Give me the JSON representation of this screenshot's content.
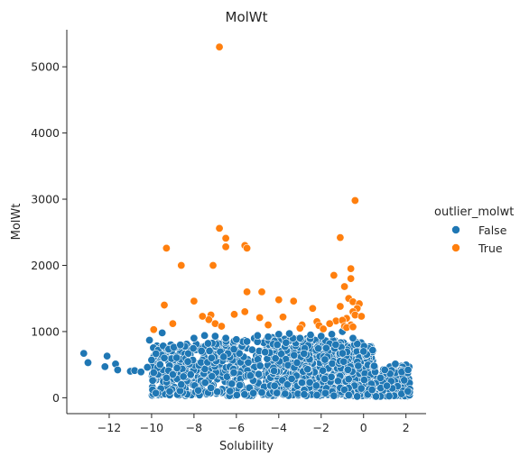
{
  "chart_data": {
    "type": "scatter",
    "title": "MolWt",
    "xlabel": "Solubility",
    "ylabel": "MolWt",
    "xlim": [
      -14,
      2.95
    ],
    "ylim": [
      -240,
      5560
    ],
    "xticks": [
      -12,
      -10,
      -8,
      -6,
      -4,
      -2,
      0,
      2
    ],
    "xtick_labels": [
      "−12",
      "−10",
      "−8",
      "−6",
      "−4",
      "−2",
      "0",
      "2"
    ],
    "yticks": [
      0,
      1000,
      2000,
      3000,
      4000,
      5000
    ],
    "ytick_labels": [
      "0",
      "1000",
      "2000",
      "3000",
      "4000",
      "5000"
    ],
    "grid": false,
    "legend": {
      "title": "outlier_molwt",
      "placement": "right",
      "entries": [
        {
          "label": "False",
          "color": "#1f77b4"
        },
        {
          "label": "True",
          "color": "#ff7f0e"
        }
      ]
    },
    "series": [
      {
        "name": "False",
        "color": "#1f77b4",
        "note_dense_region": true,
        "x": [
          -13.2,
          -13.0,
          -12.1,
          -12.2,
          -11.7,
          -11.6,
          -11.0,
          -10.8,
          -10.5,
          -10.2,
          -10.1,
          -9.95,
          -9.8,
          -10.0,
          -9.9,
          -9.6,
          -9.4,
          -9.2,
          -9.0,
          -9.5,
          -8.8,
          -8.5,
          -8.0,
          -7.5,
          -7.0,
          -6.5,
          -6.0,
          -5.5,
          -5.0,
          -4.5,
          -4.0,
          -3.5,
          -3.0,
          -2.5,
          -2.0,
          -1.5,
          -1.0,
          -0.5,
          0.0,
          0.5,
          0.8,
          1.0,
          1.3,
          1.5,
          1.8,
          2.1,
          -4.2,
          -1.1,
          -0.9,
          -7.8,
          -6.9,
          -5.2,
          -3.1,
          -2.2,
          -1.4,
          -0.3,
          0.2,
          -9.3,
          -8.6,
          -7.2,
          -6.3,
          -4.8,
          -3.7,
          -2.8,
          -1.8,
          -0.7,
          0.4,
          1.1
        ],
        "y": [
          670,
          530,
          630,
          470,
          510,
          420,
          400,
          410,
          390,
          460,
          870,
          260,
          70,
          570,
          380,
          500,
          600,
          410,
          350,
          980,
          450,
          320,
          900,
          940,
          930,
          900,
          880,
          850,
          940,
          920,
          960,
          970,
          900,
          950,
          930,
          960,
          1000,
          900,
          700,
          480,
          300,
          420,
          250,
          510,
          390,
          420,
          180,
          150,
          120,
          110,
          90,
          70,
          60,
          40,
          30,
          20,
          50,
          300,
          200,
          150,
          100,
          80,
          60,
          50,
          70,
          40,
          120,
          180
        ]
      },
      {
        "name": "True",
        "color": "#ff7f0e",
        "x": [
          -6.8,
          -0.4,
          -6.8,
          -6.5,
          -6.5,
          -1.1,
          -5.6,
          -5.5,
          -8.6,
          -7.1,
          -9.3,
          -0.6,
          -1.4,
          -0.6,
          -0.9,
          -5.5,
          -4.8,
          -4.0,
          -3.3,
          -1.1,
          -0.7,
          -0.5,
          -0.2,
          -0.3,
          -7.2,
          -8.0,
          -9.4,
          -9.0,
          -5.6,
          -4.9,
          -2.4,
          -6.1,
          -7.3,
          -7.6,
          -1.3,
          -0.8,
          -0.5,
          -0.4,
          -3.8,
          -2.9,
          -2.2,
          -1.6,
          -1.0,
          -0.9,
          -0.6,
          -0.1,
          -7.0,
          -6.7,
          -9.9,
          -4.5,
          -3.0,
          -2.1,
          -1.9,
          -0.8,
          -0.5
        ],
        "y": [
          5300,
          2980,
          2560,
          2410,
          2280,
          2420,
          2300,
          2260,
          2000,
          2000,
          2260,
          1950,
          1850,
          1800,
          1680,
          1600,
          1600,
          1480,
          1460,
          1380,
          1500,
          1450,
          1420,
          1350,
          1250,
          1460,
          1400,
          1120,
          1300,
          1210,
          1350,
          1260,
          1180,
          1230,
          1160,
          1200,
          1300,
          1250,
          1220,
          1100,
          1150,
          1120,
          1170,
          1080,
          1100,
          1230,
          1120,
          1080,
          1030,
          1100,
          1050,
          1090,
          1040,
          1060,
          1070
        ]
      }
    ]
  }
}
